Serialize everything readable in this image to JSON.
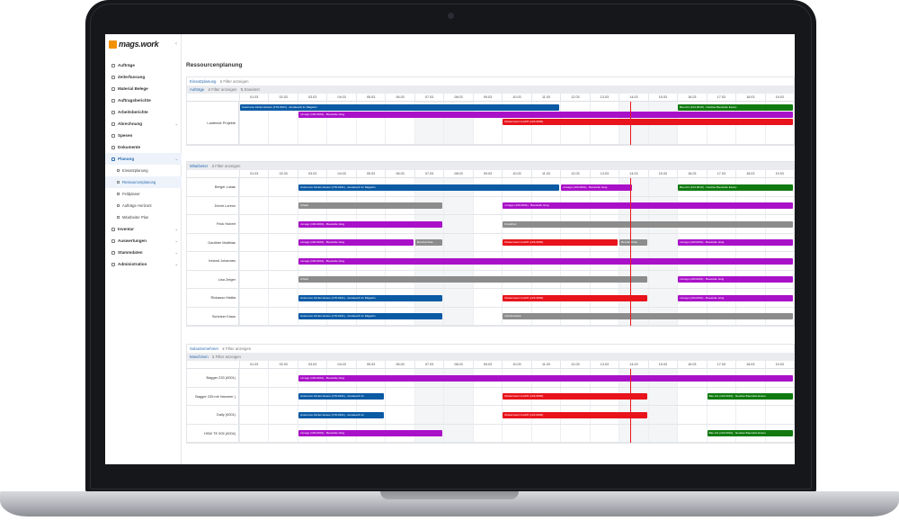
{
  "app": {
    "logo": "mags.work",
    "page_title": "Ressourcenplanung"
  },
  "sidebar": {
    "items": [
      {
        "label": "Aufträge",
        "icon": "clipboard-icon",
        "chev": false
      },
      {
        "label": "Zeiterfassung",
        "icon": "clock-icon",
        "chev": false
      },
      {
        "label": "Material Belege",
        "icon": "box-icon",
        "chev": false
      },
      {
        "label": "Auftragsberichte",
        "icon": "report-icon",
        "chev": false
      },
      {
        "label": "Arbeitsberichte",
        "icon": "report-icon",
        "chev": false
      },
      {
        "label": "Abrechnung",
        "icon": "invoice-icon",
        "chev": true
      },
      {
        "label": "Spesen",
        "icon": "coin-icon",
        "chev": false
      },
      {
        "label": "Dokumente",
        "icon": "document-icon",
        "chev": false
      },
      {
        "label": "Planung",
        "icon": "calendar-icon",
        "chev": true,
        "active": true
      }
    ],
    "sub": [
      {
        "label": "Einsatzplanung"
      },
      {
        "label": "Ressourcenplanung",
        "active": true
      },
      {
        "label": "Feldplaner"
      },
      {
        "label": "Aufträge Horizont"
      },
      {
        "label": "Mitarbeiter Plan"
      }
    ],
    "items2": [
      {
        "label": "Inventar",
        "icon": "toolbox-icon",
        "chev": true
      },
      {
        "label": "Auswertungen",
        "icon": "chart-icon",
        "chev": true
      },
      {
        "label": "Stammdaten",
        "icon": "database-icon",
        "chev": true
      },
      {
        "label": "Administration",
        "icon": "gear-icon",
        "chev": true
      }
    ]
  },
  "dates": [
    "01.03",
    "02.03",
    "03.03",
    "04.03",
    "05.03",
    "06.03",
    "07.03",
    "08.03",
    "09.03",
    "10.03",
    "11.03",
    "12.03",
    "13.03",
    "14.03",
    "15.03",
    "16.03",
    "17.03",
    "18.03",
    "19.03"
  ],
  "weekend_cols": [
    6,
    7,
    13,
    14
  ],
  "today_col": 13.4,
  "filter_label": "Filter anzeigen",
  "sections": {
    "einsatz": {
      "tab": "Einsatzplanung",
      "sub": "Aufträge",
      "filter": "Filter anzeigen",
      "extra": "Erweitert"
    },
    "mitarbeiter": {
      "title": "Mitarbeiter",
      "filter": "Filter anzeigen"
    },
    "subunternehmer": {
      "title": "Subunternehmer",
      "filter": "Filter anzeigen"
    },
    "maschinen": {
      "title": "Maschinen",
      "filter": "Filter anzeigen"
    }
  },
  "rows_einsatz": [
    {
      "label": "Laufende Projekte",
      "h": 48,
      "bars": [
        {
          "start": 0,
          "end": 11,
          "lane": 0,
          "color": "blue",
          "text": "Autonome Finden Essen (178-0101) - Austausch im Magazin"
        },
        {
          "start": 15,
          "end": 19,
          "lane": 0,
          "color": "green",
          "text": "Bau AG (123-0010) - Neubau Baustelle Essen"
        },
        {
          "start": 2,
          "end": 19,
          "lane": 1,
          "color": "purple",
          "text": "mmago (100-0001) - Baustelle Ising"
        },
        {
          "start": 9,
          "end": 19,
          "lane": 2,
          "color": "red",
          "text": "Mustermann GmbH (123-0000)"
        }
      ]
    }
  ],
  "rows_mitarbeiter": [
    {
      "label": "Berger Lukas",
      "bars": [
        {
          "start": 2,
          "end": 11,
          "color": "blue",
          "text": "Autonome Finden Essen (178-0101) - Austausch im Magazin"
        },
        {
          "start": 11,
          "end": 13.5,
          "color": "purple",
          "text": "mmago (100-0001) - Baustelle Ising"
        },
        {
          "start": 15,
          "end": 19,
          "color": "green",
          "text": "Bau AG (123-0010) - Neubau Baustelle Essen"
        }
      ]
    },
    {
      "label": "Demir Lorenz",
      "bars": [
        {
          "start": 2,
          "end": 7,
          "color": "gray",
          "text": "Urlaub"
        },
        {
          "start": 9,
          "end": 19,
          "color": "purple",
          "text": "mmago (100-0001) - Baustelle Ising"
        }
      ]
    },
    {
      "label": "Frick Hubert",
      "bars": [
        {
          "start": 2,
          "end": 7,
          "color": "purple",
          "text": "mmago (100-0001) - Baustelle Ising"
        },
        {
          "start": 9,
          "end": 19,
          "color": "gray",
          "text": "Krankheit"
        }
      ]
    },
    {
      "label": "Gauthier Matthias",
      "bars": [
        {
          "start": 2,
          "end": 6,
          "color": "purple",
          "text": "mmago (100-0001) - Baustelle Ising"
        },
        {
          "start": 6,
          "end": 7,
          "color": "gray",
          "text": "Berufsschule"
        },
        {
          "start": 9,
          "end": 13,
          "color": "red",
          "text": "Mustermann GmbH (123-0000)"
        },
        {
          "start": 13,
          "end": 14,
          "color": "gray",
          "text": "Berufsschule"
        },
        {
          "start": 15,
          "end": 19,
          "color": "purple",
          "text": "mmago (100-0001) - Baustelle Ising"
        }
      ]
    },
    {
      "label": "Ireland Johannes",
      "bars": [
        {
          "start": 2,
          "end": 19,
          "color": "purple",
          "text": "mmago (100-0001) - Baustelle Ising"
        }
      ]
    },
    {
      "label": "Lisa Zeiger",
      "bars": [
        {
          "start": 2,
          "end": 14,
          "color": "gray",
          "text": "Urlaub"
        },
        {
          "start": 15,
          "end": 19,
          "color": "purple",
          "text": "mmago (100-0001) - Baustelle Ising"
        }
      ]
    },
    {
      "label": "Rickasso Mattia",
      "bars": [
        {
          "start": 2,
          "end": 7,
          "color": "blue",
          "text": "Autonome Finden Essen (178-0101) - Austausch im Magazin"
        },
        {
          "start": 9,
          "end": 14,
          "color": "red",
          "text": "Mustermann GmbH (123-0000)"
        },
        {
          "start": 15,
          "end": 19,
          "color": "purple",
          "text": "mmago (100-0001) - Baustelle Ising"
        }
      ]
    },
    {
      "label": "Schetzer Klaus",
      "bars": [
        {
          "start": 2,
          "end": 7,
          "color": "blue",
          "text": "Autonome Finden Essen (178-0101) - Austausch im Magazin"
        },
        {
          "start": 9,
          "end": 19,
          "color": "gray",
          "text": "Arbeitsurlaub"
        }
      ]
    }
  ],
  "rows_maschinen": [
    {
      "label": "Bagger 233 (0001)",
      "bars": [
        {
          "start": 2,
          "end": 19,
          "color": "purple",
          "text": "mmago (100-0001) - Baustelle Ising"
        }
      ]
    },
    {
      "label": "Bagger 235 mit Hammer (",
      "bars": [
        {
          "start": 2,
          "end": 5,
          "color": "blue",
          "text": "Autonome Finden Essen (178-0101) - Austausch im"
        },
        {
          "start": 9,
          "end": 14,
          "color": "red",
          "text": "Mustermann GmbH (123-0000)"
        },
        {
          "start": 16,
          "end": 19,
          "color": "green",
          "text": "Bau AG (123-0010) - Neubau Baustelle Essen"
        }
      ]
    },
    {
      "label": "Daily (0001)",
      "bars": [
        {
          "start": 2,
          "end": 5,
          "color": "blue",
          "text": "Autonome Finden Essen (178-0101) - Austausch im"
        },
        {
          "start": 9,
          "end": 14,
          "color": "red",
          "text": "Mustermann GmbH (123-0000)"
        }
      ]
    },
    {
      "label": "HSW TE 905 (0004)",
      "bars": [
        {
          "start": 2,
          "end": 7,
          "color": "purple",
          "text": "mmago (100-0001) - Baustelle Ising"
        },
        {
          "start": 16,
          "end": 19,
          "color": "green",
          "text": "Bau AG (123-0010) - Neubau Baustelle Essen"
        }
      ]
    }
  ]
}
